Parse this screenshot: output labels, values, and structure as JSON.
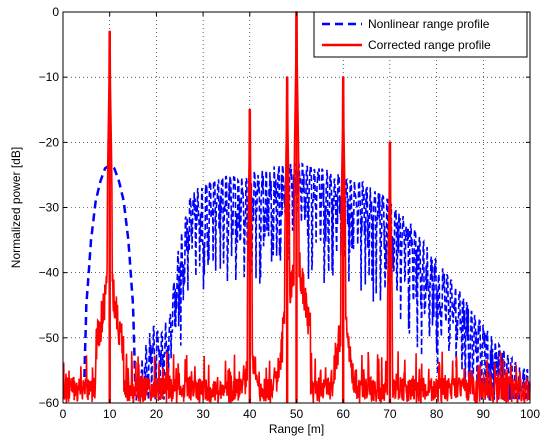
{
  "chart_data": {
    "type": "line",
    "title": "",
    "xlabel": "Range [m]",
    "ylabel": "Normalized power [dB]",
    "xlim": [
      0,
      100
    ],
    "ylim": [
      -60,
      0
    ],
    "xticks": [
      0,
      10,
      20,
      30,
      40,
      50,
      60,
      70,
      80,
      90,
      100
    ],
    "yticks": [
      0,
      -10,
      -20,
      -30,
      -40,
      -50,
      -60
    ],
    "xtick_labels": [
      "0",
      "10",
      "20",
      "30",
      "40",
      "50",
      "60",
      "70",
      "80",
      "90",
      "100"
    ],
    "ytick_labels": [
      "0",
      "−10",
      "−20",
      "−30",
      "−40",
      "−50",
      "−60"
    ],
    "grid": true,
    "grid_style": "dotted",
    "legend_position": "top-right",
    "series": [
      {
        "name": "Nonlinear range profile",
        "color": "#0000ff",
        "line_style": "dashed",
        "x": [
          4.5,
          5.0,
          6.0,
          7.0,
          8.0,
          9.0,
          10.0,
          11.0,
          12.0,
          13.0,
          14.0,
          15.0,
          15.5,
          17.0,
          19.0,
          21.0,
          23.0,
          24.0,
          25.0,
          26.0,
          27.0,
          28.0,
          30.0,
          32.0,
          34.0,
          36.0,
          38.0,
          40.0,
          42.0,
          44.0,
          46.0,
          48.0,
          50.0,
          52.0,
          54.0,
          56.0,
          58.0,
          60.0,
          62.0,
          64.0,
          66.0,
          68.0,
          70.0,
          72.0,
          74.0,
          76.0,
          78.0,
          80.0,
          82.0,
          84.0,
          86.0,
          88.0,
          90.0,
          92.0,
          94.0,
          96.0,
          98.0,
          100.0
        ],
        "y": [
          -58.0,
          -45.0,
          -35.0,
          -29.0,
          -26.0,
          -24.0,
          -23.5,
          -24.0,
          -26.0,
          -29.0,
          -35.0,
          -45.0,
          -58.0,
          -53.0,
          -48.0,
          -49.0,
          -46.0,
          -40.0,
          -35.0,
          -32.0,
          -29.0,
          -27.5,
          -26.5,
          -26.0,
          -25.5,
          -25.0,
          -25.5,
          -24.5,
          -24.0,
          -24.0,
          -23.5,
          -23.5,
          -23.0,
          -23.5,
          -24.0,
          -24.0,
          -24.5,
          -25.0,
          -26.0,
          -26.0,
          -27.0,
          -28.0,
          -29.0,
          -30.5,
          -32.0,
          -34.0,
          -36.0,
          -38.0,
          -40.0,
          -42.0,
          -44.0,
          -46.0,
          -48.0,
          -50.0,
          -51.5,
          -53.0,
          -54.5,
          -55.0
        ]
      },
      {
        "name": "Corrected range profile",
        "color": "#ff0000",
        "line_style": "solid",
        "floor": -56.0,
        "peaks": [
          {
            "x": 10,
            "y": -3
          },
          {
            "x": 40,
            "y": -15
          },
          {
            "x": 48,
            "y": -10
          },
          {
            "x": 50,
            "y": 0
          },
          {
            "x": 60,
            "y": -10
          },
          {
            "x": 70,
            "y": -20
          }
        ]
      }
    ]
  }
}
